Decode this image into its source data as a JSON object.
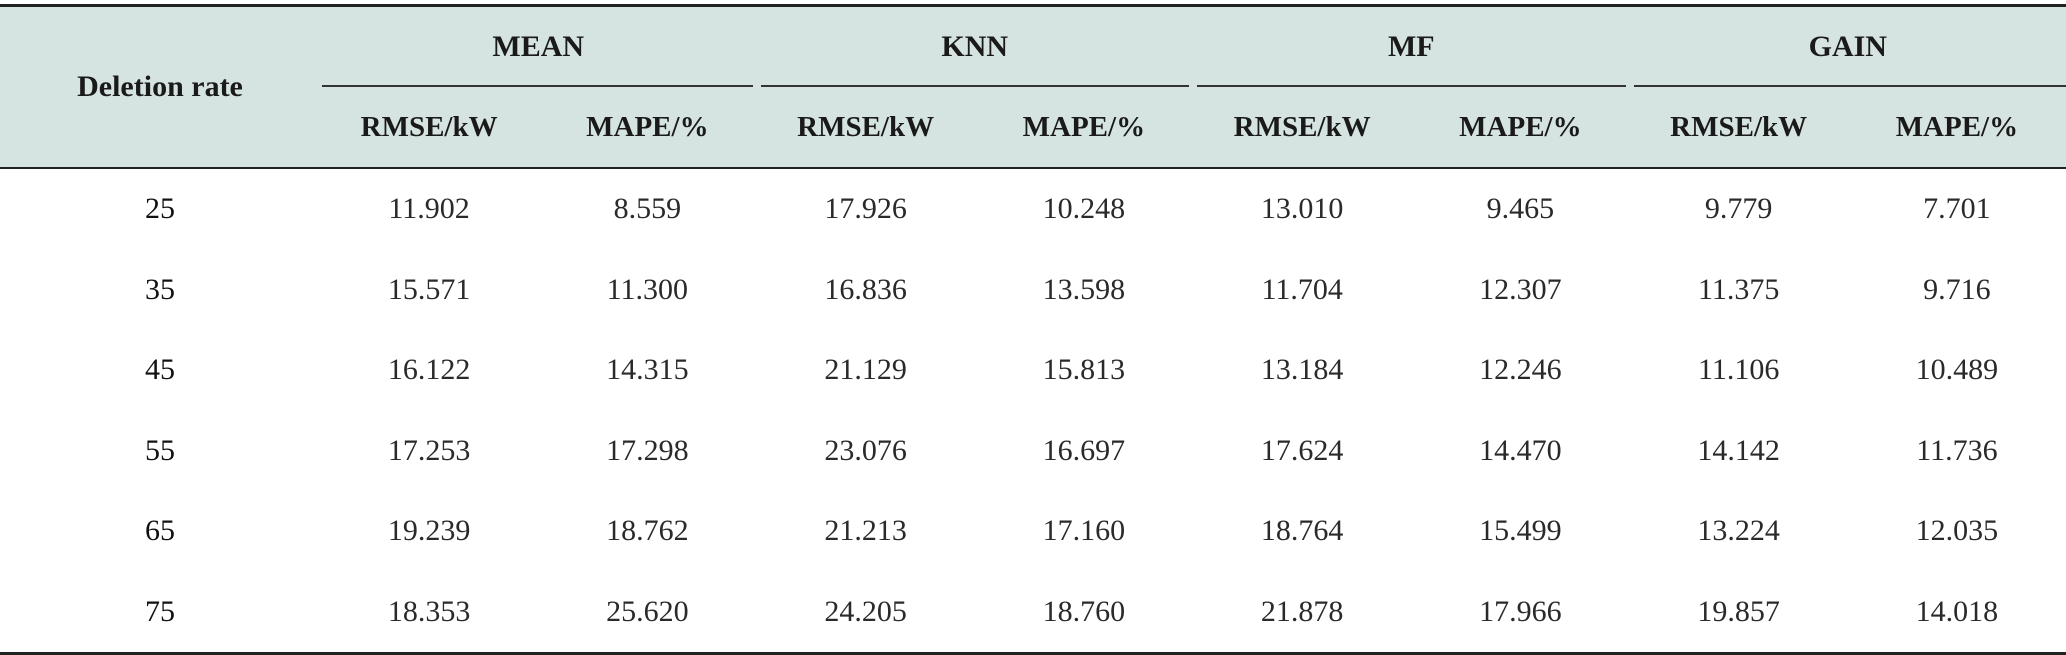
{
  "table": {
    "row_header_label": "Deletion rate",
    "methods": [
      "MEAN",
      "KNN",
      "MF",
      "GAIN"
    ],
    "metrics": [
      "RMSE/kW",
      "MAPE/%"
    ],
    "rows": [
      {
        "rate": "25",
        "values": [
          "11.902",
          "8.559",
          "17.926",
          "10.248",
          "13.010",
          "9.465",
          "9.779",
          "7.701"
        ]
      },
      {
        "rate": "35",
        "values": [
          "15.571",
          "11.300",
          "16.836",
          "13.598",
          "11.704",
          "12.307",
          "11.375",
          "9.716"
        ]
      },
      {
        "rate": "45",
        "values": [
          "16.122",
          "14.315",
          "21.129",
          "15.813",
          "13.184",
          "12.246",
          "11.106",
          "10.489"
        ]
      },
      {
        "rate": "55",
        "values": [
          "17.253",
          "17.298",
          "23.076",
          "16.697",
          "17.624",
          "14.470",
          "14.142",
          "11.736"
        ]
      },
      {
        "rate": "65",
        "values": [
          "19.239",
          "18.762",
          "21.213",
          "17.160",
          "18.764",
          "15.499",
          "13.224",
          "12.035"
        ]
      },
      {
        "rate": "75",
        "values": [
          "18.353",
          "25.620",
          "24.205",
          "18.760",
          "21.878",
          "17.966",
          "19.857",
          "14.018"
        ]
      }
    ]
  },
  "colors": {
    "header_background": "#d6e4e1",
    "rule": "#222222",
    "text": "#1a1a1a"
  }
}
